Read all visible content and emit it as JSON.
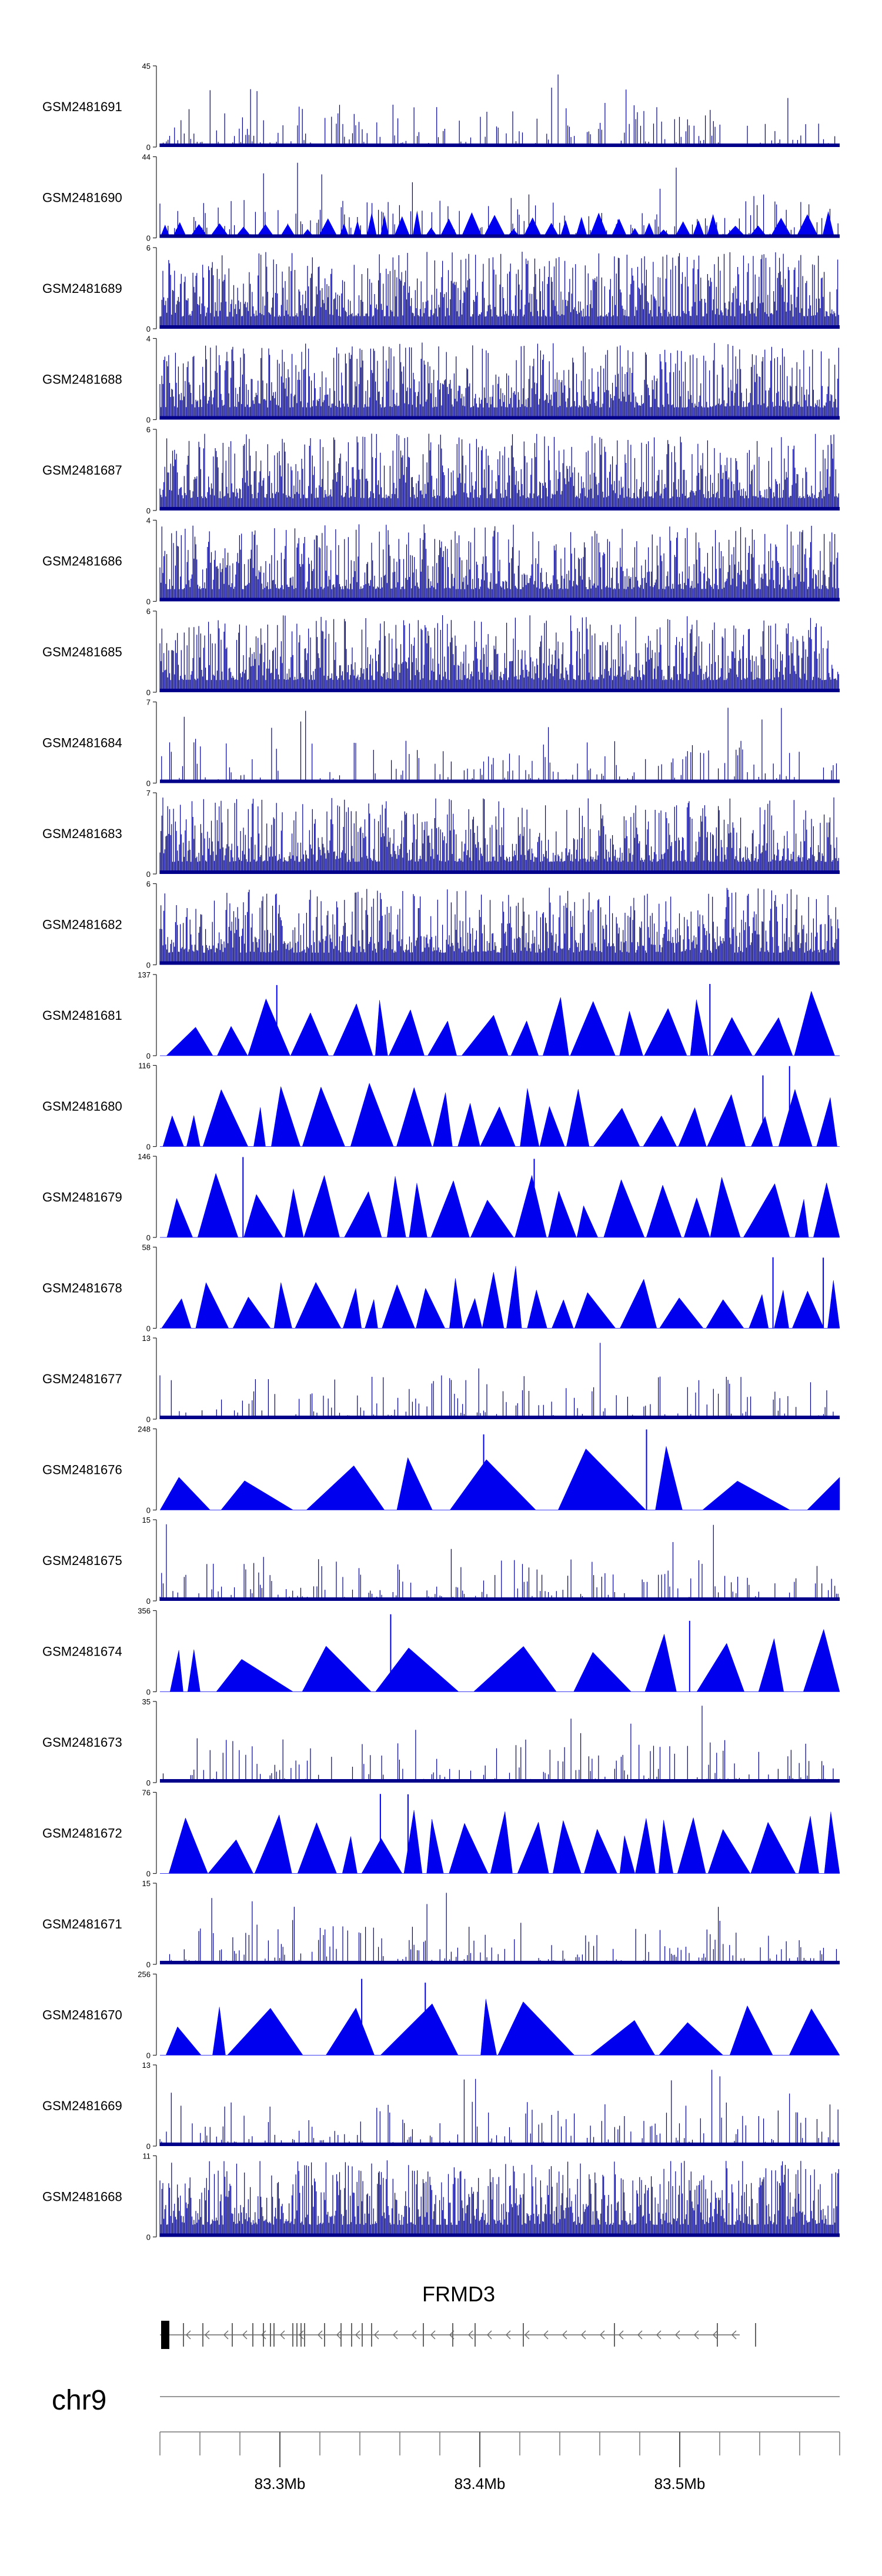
{
  "chart_data": {
    "type": "area",
    "title": "",
    "colors": {
      "signal": "#0000ee",
      "signal_line": "#00008b",
      "axis": "#222222",
      "gene": "#666666"
    },
    "x_range_bp": [
      83240000,
      83580000
    ],
    "tracks": [
      {
        "name": "GSM2481691",
        "ymax": 45,
        "style": "sparse"
      },
      {
        "name": "GSM2481690",
        "ymax": 44,
        "style": "sparse_tri"
      },
      {
        "name": "GSM2481689",
        "ymax": 6,
        "style": "dense"
      },
      {
        "name": "GSM2481688",
        "ymax": 4,
        "style": "dense"
      },
      {
        "name": "GSM2481687",
        "ymax": 6,
        "style": "dense"
      },
      {
        "name": "GSM2481686",
        "ymax": 4,
        "style": "dense"
      },
      {
        "name": "GSM2481685",
        "ymax": 6,
        "style": "dense"
      },
      {
        "name": "GSM2481684",
        "ymax": 7,
        "style": "sparse"
      },
      {
        "name": "GSM2481683",
        "ymax": 7,
        "style": "dense"
      },
      {
        "name": "GSM2481682",
        "ymax": 6,
        "style": "dense"
      },
      {
        "name": "GSM2481681",
        "ymax": 137,
        "style": "triangles"
      },
      {
        "name": "GSM2481680",
        "ymax": 116,
        "style": "triangles"
      },
      {
        "name": "GSM2481679",
        "ymax": 146,
        "style": "triangles"
      },
      {
        "name": "GSM2481678",
        "ymax": 58,
        "style": "triangles"
      },
      {
        "name": "GSM2481677",
        "ymax": 13,
        "style": "sparse"
      },
      {
        "name": "GSM2481676",
        "ymax": 248,
        "style": "triangles"
      },
      {
        "name": "GSM2481675",
        "ymax": 15,
        "style": "sparse"
      },
      {
        "name": "GSM2481674",
        "ymax": 356,
        "style": "triangles"
      },
      {
        "name": "GSM2481673",
        "ymax": 35,
        "style": "sparse"
      },
      {
        "name": "GSM2481672",
        "ymax": 76,
        "style": "triangles"
      },
      {
        "name": "GSM2481671",
        "ymax": 15,
        "style": "sparse"
      },
      {
        "name": "GSM2481670",
        "ymax": 256,
        "style": "triangles"
      },
      {
        "name": "GSM2481669",
        "ymax": 13,
        "style": "sparse"
      },
      {
        "name": "GSM2481668",
        "ymax": 11,
        "style": "dense"
      }
    ],
    "gene": {
      "name": "FRMD3",
      "start_bp": 83240000,
      "end_bp": 83530000,
      "strand": "-"
    },
    "chromosome": "chr9",
    "x_ticks": [
      {
        "value_bp": 83300000,
        "label": "83.3Mb"
      },
      {
        "value_bp": 83400000,
        "label": "83.4Mb"
      },
      {
        "value_bp": 83500000,
        "label": "83.5Mb"
      }
    ],
    "minor_tick_step_bp": 20000
  }
}
